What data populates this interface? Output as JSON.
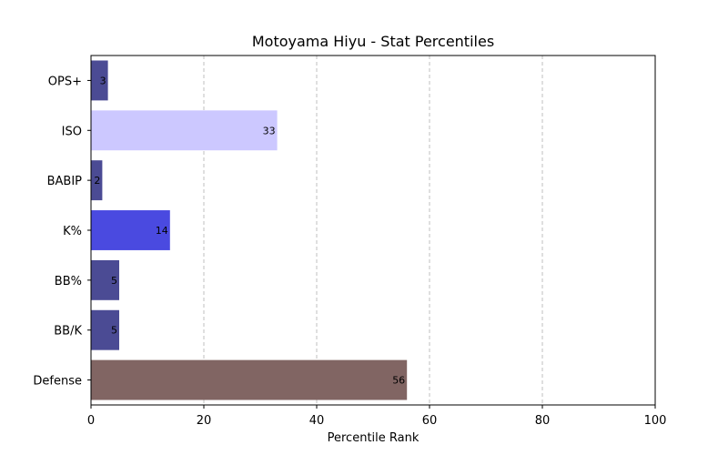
{
  "chart_data": {
    "type": "bar",
    "orientation": "horizontal",
    "title": "Motoyama Hiyu - Stat Percentiles",
    "xlabel": "Percentile Rank",
    "ylabel": "",
    "xlim": [
      0,
      100
    ],
    "xticks": [
      0,
      20,
      40,
      60,
      80,
      100
    ],
    "grid": "x-dashed",
    "categories": [
      "OPS+",
      "ISO",
      "BABIP",
      "K%",
      "BB%",
      "BB/K",
      "Defense"
    ],
    "values": [
      3,
      33,
      2,
      14,
      5,
      5,
      56
    ],
    "colors": [
      "#4b4b94",
      "#ccc8ff",
      "#4b4b94",
      "#4a4ae0",
      "#4b4b94",
      "#4b4b94",
      "#816563"
    ]
  }
}
